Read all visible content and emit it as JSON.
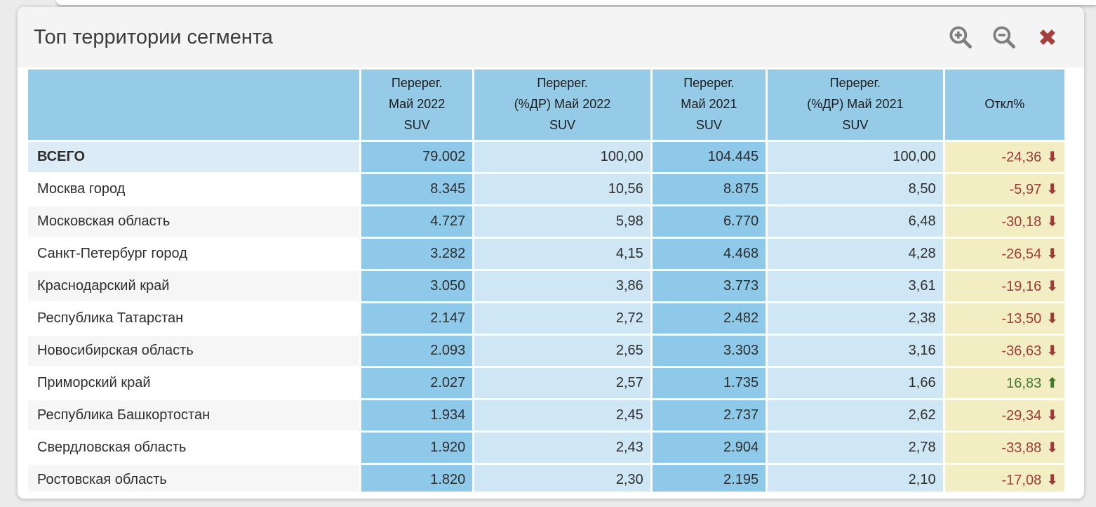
{
  "panel": {
    "title": "Топ территории сегмента",
    "toolbar": {
      "zoom_in_icon": "magnifier-plus",
      "zoom_out_icon": "magnifier-minus",
      "close_icon": "✖"
    }
  },
  "colors": {
    "header_blue": "#96cbe7",
    "count_cell_blue": "#8ec9e9",
    "percent_cell_blue": "#cfe6f5",
    "deviation_cell_yellow": "#f2edc3",
    "total_row_blue": "#ddebf7",
    "negative_red": "#9e3a38",
    "positive_green": "#41792f",
    "close_red": "#a6403e",
    "icon_gray": "#7e7e7e"
  },
  "table": {
    "arrow_up": "⬆",
    "arrow_down": "⬇",
    "columns": [
      {
        "label": ""
      },
      {
        "label": "Перерег.\nМай 2022\nSUV"
      },
      {
        "label": "Перерег.\n(%ДР) Май 2022\nSUV"
      },
      {
        "label": "Перерег.\nМай 2021\nSUV"
      },
      {
        "label": "Перерег.\n(%ДР) Май 2021\nSUV"
      },
      {
        "label": "Откл%"
      }
    ],
    "rows": [
      {
        "territory": "ВСЕГО",
        "reg_may_2022": "79.002",
        "pct_may_2022": "100,00",
        "reg_may_2021": "104.445",
        "pct_may_2021": "100,00",
        "deviation": "-24,36",
        "direction": "down",
        "is_total": true
      },
      {
        "territory": "Москва город",
        "reg_may_2022": "8.345",
        "pct_may_2022": "10,56",
        "reg_may_2021": "8.875",
        "pct_may_2021": "8,50",
        "deviation": "-5,97",
        "direction": "down",
        "is_total": false
      },
      {
        "territory": "Московская область",
        "reg_may_2022": "4.727",
        "pct_may_2022": "5,98",
        "reg_may_2021": "6.770",
        "pct_may_2021": "6,48",
        "deviation": "-30,18",
        "direction": "down",
        "is_total": false
      },
      {
        "territory": "Санкт-Петербург город",
        "reg_may_2022": "3.282",
        "pct_may_2022": "4,15",
        "reg_may_2021": "4.468",
        "pct_may_2021": "4,28",
        "deviation": "-26,54",
        "direction": "down",
        "is_total": false
      },
      {
        "territory": "Краснодарский край",
        "reg_may_2022": "3.050",
        "pct_may_2022": "3,86",
        "reg_may_2021": "3.773",
        "pct_may_2021": "3,61",
        "deviation": "-19,16",
        "direction": "down",
        "is_total": false
      },
      {
        "territory": "Республика Татарстан",
        "reg_may_2022": "2.147",
        "pct_may_2022": "2,72",
        "reg_may_2021": "2.482",
        "pct_may_2021": "2,38",
        "deviation": "-13,50",
        "direction": "down",
        "is_total": false
      },
      {
        "territory": "Новосибирская область",
        "reg_may_2022": "2.093",
        "pct_may_2022": "2,65",
        "reg_may_2021": "3.303",
        "pct_may_2021": "3,16",
        "deviation": "-36,63",
        "direction": "down",
        "is_total": false
      },
      {
        "territory": "Приморский край",
        "reg_may_2022": "2.027",
        "pct_may_2022": "2,57",
        "reg_may_2021": "1.735",
        "pct_may_2021": "1,66",
        "deviation": "16,83",
        "direction": "up",
        "is_total": false
      },
      {
        "territory": "Республика Башкортостан",
        "reg_may_2022": "1.934",
        "pct_may_2022": "2,45",
        "reg_may_2021": "2.737",
        "pct_may_2021": "2,62",
        "deviation": "-29,34",
        "direction": "down",
        "is_total": false
      },
      {
        "territory": "Свердловская область",
        "reg_may_2022": "1.920",
        "pct_may_2022": "2,43",
        "reg_may_2021": "2.904",
        "pct_may_2021": "2,78",
        "deviation": "-33,88",
        "direction": "down",
        "is_total": false
      },
      {
        "territory": "Ростовская область",
        "reg_may_2022": "1.820",
        "pct_may_2022": "2,30",
        "reg_may_2021": "2.195",
        "pct_may_2021": "2,10",
        "deviation": "-17,08",
        "direction": "down",
        "is_total": false
      }
    ],
    "partial_row_visible": true
  }
}
